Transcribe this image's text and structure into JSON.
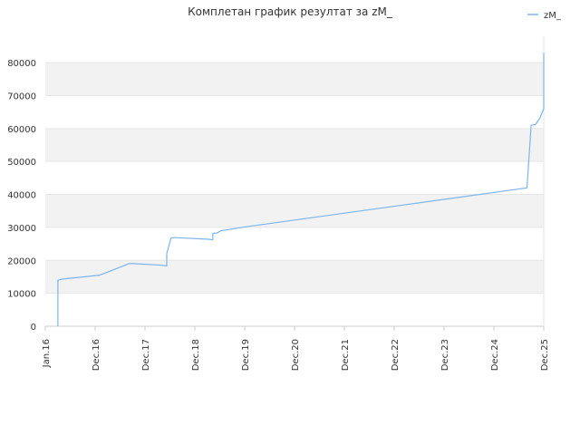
{
  "chart_data": {
    "type": "line",
    "title": "Комплетан график резултат за zM_",
    "xlabel": "",
    "ylabel": "",
    "x_ticks": [
      "Jan.16",
      "Dec.16",
      "Dec.17",
      "Dec.18",
      "Dec.19",
      "Dec.20",
      "Dec.21",
      "Dec.22",
      "Dec.23",
      "Dec.24",
      "Dec.25"
    ],
    "y_ticks": [
      "0",
      "10000",
      "20000",
      "30000",
      "40000",
      "50000",
      "60000",
      "70000",
      "80000"
    ],
    "ylim": [
      0,
      88000
    ],
    "xlim": [
      "2016-01",
      "2025-12"
    ],
    "grid": true,
    "legend_position": "top-right",
    "colors": {
      "series": "#7cb5ec",
      "band_light": "#f2f2f2",
      "band_white": "#ffffff",
      "axis": "#cccccc"
    },
    "series": [
      {
        "name": "zM_",
        "x": [
          "2016-04",
          "2016-04",
          "2016-05",
          "2017-02",
          "2017-03",
          "2017-09",
          "2017-10",
          "2018-05",
          "2018-06",
          "2018-06",
          "2018-07",
          "2018-08",
          "2019-04",
          "2019-05",
          "2019-05",
          "2019-06",
          "2019-07",
          "2019-08",
          "2020-01",
          "2025-08",
          "2025-08",
          "2025-09",
          "2025-10",
          "2025-11",
          "2025-12",
          "2025-12",
          "2025-12"
        ],
        "y": [
          0,
          14000,
          14300,
          15500,
          16000,
          19000,
          19000,
          18500,
          18300,
          22000,
          26800,
          26900,
          26400,
          26200,
          28200,
          28300,
          29000,
          29200,
          30200,
          42000,
          42100,
          61000,
          61200,
          63000,
          66000,
          82000,
          83000
        ]
      }
    ]
  }
}
